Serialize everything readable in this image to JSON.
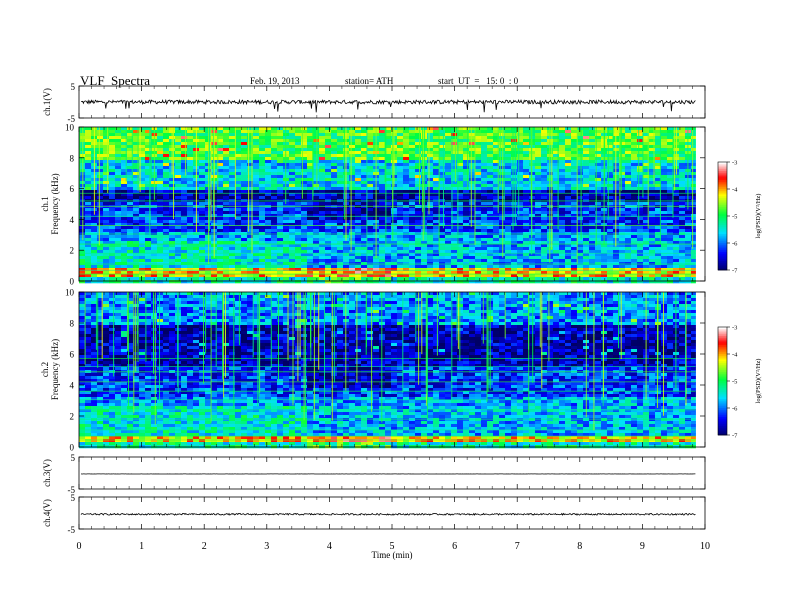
{
  "header": {
    "title": "VLF  Spectra",
    "date": "Feb. 19, 2013",
    "station": "station= ATH",
    "start": "start  UT  =   15: 0  : 0"
  },
  "chart_data": [
    {
      "type": "line",
      "panel": "ch1-waveform",
      "ylabel": "ch.1(V)",
      "ylim": [
        -5,
        5
      ],
      "y_ticks": [
        "5",
        "-5"
      ],
      "xlim": [
        0,
        9.85
      ],
      "baseline": 0,
      "noise_amplitude": 0.6,
      "note_spikes": "sporadic negative spikes down to about -3 V"
    },
    {
      "type": "heatmap",
      "panel": "ch1-spectrogram",
      "xlabel": "Time  (min)",
      "ylabel": "Frequency  (kHz)",
      "channel_label": "ch.1",
      "ylim": [
        0,
        10
      ],
      "y_ticks": [
        "0",
        "2",
        "4",
        "6",
        "8",
        "10"
      ],
      "xlim": [
        0,
        9.85
      ],
      "segments_min": [
        3.55,
        4.9
      ],
      "colorbar": {
        "label": "log(PSD)(V²/Hz)",
        "range": [
          -7,
          -3
        ],
        "ticks": [
          "-3",
          "-4",
          "-5",
          "-6",
          "-7"
        ]
      }
    },
    {
      "type": "heatmap",
      "panel": "ch2-spectrogram",
      "xlabel": "Time  (min)",
      "ylabel": "Frequency  (kHz)",
      "channel_label": "ch.2",
      "ylim": [
        0,
        10
      ],
      "y_ticks": [
        "0",
        "2",
        "4",
        "6",
        "8",
        "10"
      ],
      "xlim": [
        0,
        9.85
      ],
      "segments_min": [
        3.55,
        4.9
      ],
      "colorbar": {
        "label": "log(PSD)(V²/Hz)",
        "range": [
          -7,
          -3
        ],
        "ticks": [
          "-3",
          "-4",
          "-5",
          "-6",
          "-7"
        ]
      }
    },
    {
      "type": "line",
      "panel": "ch3-waveform",
      "ylabel": "ch.3(V)",
      "ylim": [
        -5,
        5
      ],
      "y_ticks": [
        "5",
        "-5"
      ],
      "xlim": [
        0,
        9.85
      ],
      "baseline": -0.3,
      "noise_amplitude": 0.02
    },
    {
      "type": "line",
      "panel": "ch4-waveform",
      "ylabel": "ch.4(V)",
      "ylim": [
        -5,
        5
      ],
      "y_ticks": [
        "5",
        "-5"
      ],
      "xlim": [
        0,
        9.85
      ],
      "baseline": -0.4,
      "noise_amplitude": 0.25
    }
  ],
  "x_axis": {
    "label": "Time  (min)",
    "range": [
      0,
      10
    ],
    "ticks": [
      "0",
      "1",
      "2",
      "3",
      "4",
      "5",
      "6",
      "7",
      "8",
      "9",
      "10"
    ]
  },
  "colors": {
    "colormap": [
      "#000066",
      "#0000ff",
      "#00e0ff",
      "#00ff40",
      "#ffff00",
      "#ff0000",
      "#ffffff"
    ]
  }
}
